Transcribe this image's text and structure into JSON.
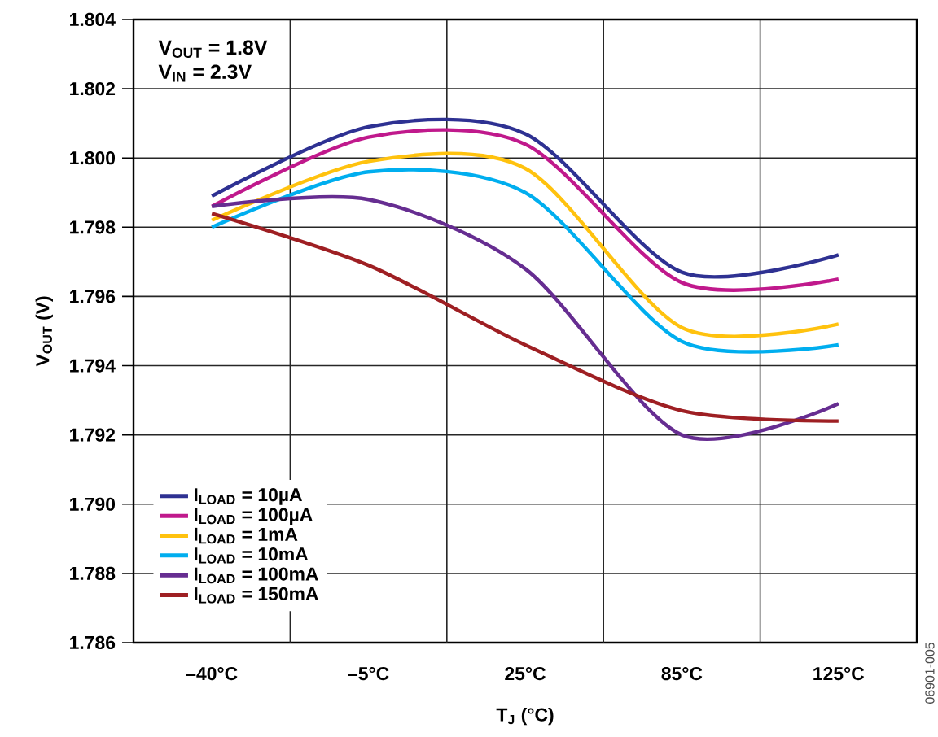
{
  "chart_data": {
    "type": "line",
    "xlabel": "T$_{J}$ (°C)",
    "ylabel": "V$_{OUT}$ (V)",
    "annotations": [
      "V$_{OUT}$ = 1.8V",
      "V$_{IN}$ = 2.3V",
      "06901-005"
    ],
    "categories": [
      "–40°C",
      "–5°C",
      "25°C",
      "85°C",
      "125°C"
    ],
    "ylim": [
      1.786,
      1.804
    ],
    "yticks": [
      1.786,
      1.788,
      {
        "value": 1.79,
        "label": "1.790"
      },
      1.792,
      1.794,
      1.796,
      1.798,
      {
        "value": 1.8,
        "label": "1.800"
      },
      1.802,
      1.804
    ],
    "grid": true,
    "legend": "bottom left",
    "marker": "none",
    "line_style": "solid",
    "series": [
      {
        "name": "I$_{LOAD}$ = 10µA",
        "color": "#2e3192",
        "values": [
          1.7989,
          1.8009,
          1.8007,
          1.7967,
          1.7972
        ]
      },
      {
        "name": "I$_{LOAD}$ = 100µA",
        "color": "#c0198c",
        "values": [
          1.7986,
          1.8006,
          1.8004,
          1.7964,
          1.7965
        ]
      },
      {
        "name": "I$_{LOAD}$ = 1mA",
        "color": "#ffc20e",
        "values": [
          1.7982,
          1.7999,
          1.7997,
          1.7951,
          1.7952
        ]
      },
      {
        "name": "I$_{LOAD}$ = 10mA",
        "color": "#00aeef",
        "values": [
          1.798,
          1.7996,
          1.799,
          1.7947,
          1.7946
        ]
      },
      {
        "name": "I$_{LOAD}$ = 100mA",
        "color": "#662d91",
        "values": [
          1.7986,
          1.7988,
          1.7968,
          1.792,
          1.7929
        ]
      },
      {
        "name": "I$_{LOAD}$ = 150mA",
        "color": "#9e1f23",
        "values": [
          1.7984,
          1.7969,
          1.7946,
          1.7927,
          1.7924
        ]
      }
    ]
  }
}
